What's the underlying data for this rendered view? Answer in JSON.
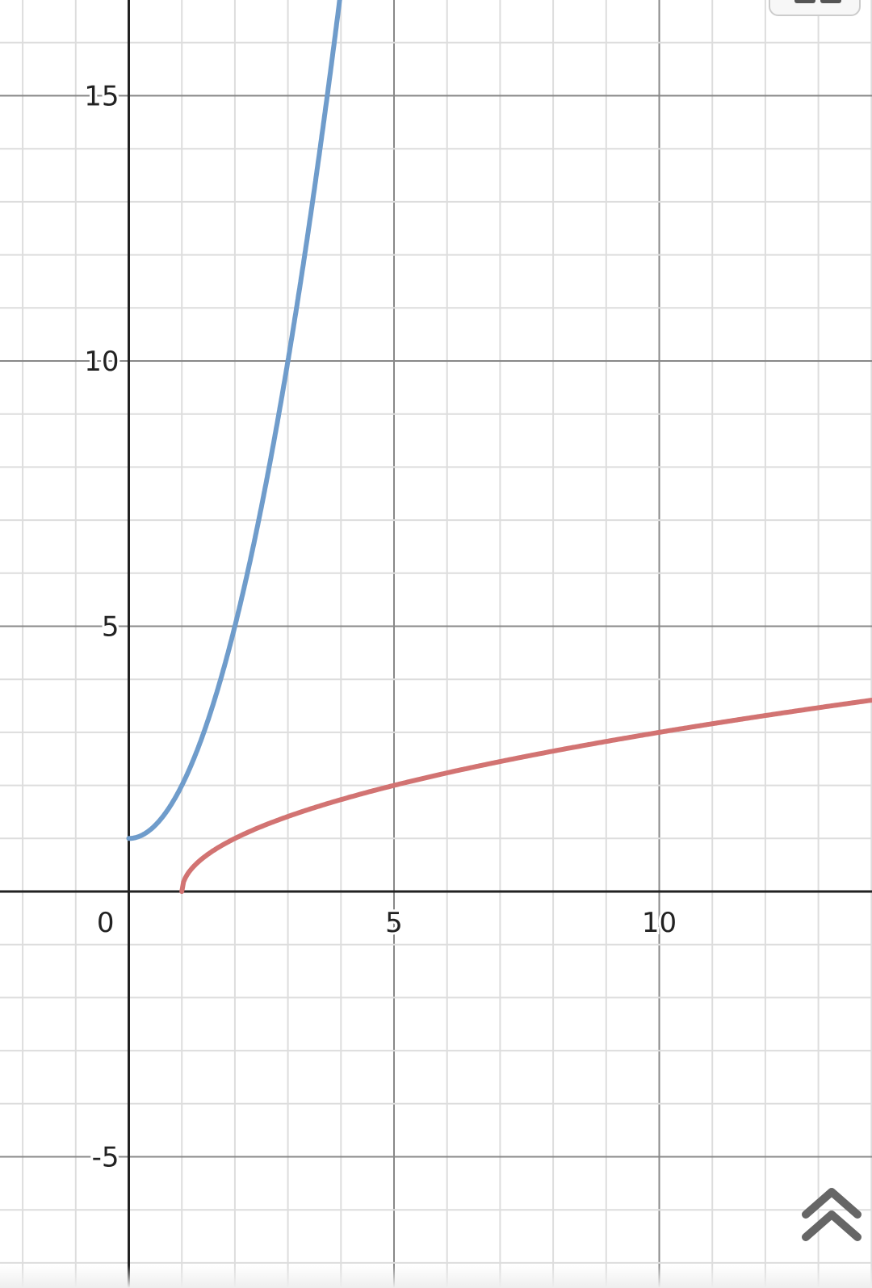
{
  "chart_data": {
    "type": "line",
    "title": "",
    "xlabel": "",
    "ylabel": "",
    "xlim": [
      -2.43,
      14.0
    ],
    "ylim": [
      -7.4,
      16.8
    ],
    "grid": true,
    "major_step": 5,
    "minor_step": 1,
    "x_ticks": [
      "0",
      "5",
      "10"
    ],
    "y_ticks": [
      "-5",
      "5",
      "10",
      "15"
    ],
    "series": [
      {
        "expression": "y = x^2 + 1 (x ≥ 0)",
        "color": "#6f9ccb",
        "domain": [
          0,
          4.0
        ],
        "points": [
          [
            0,
            1
          ],
          [
            1,
            2
          ],
          [
            2,
            5
          ],
          [
            3,
            10
          ],
          [
            3.87,
            16
          ]
        ]
      },
      {
        "expression": "y = sqrt(x - 1)",
        "color": "#d27372",
        "domain": [
          1,
          14
        ],
        "points": [
          [
            1,
            0
          ],
          [
            2,
            1
          ],
          [
            5,
            2
          ],
          [
            10,
            3
          ],
          [
            14,
            3.61
          ]
        ]
      }
    ]
  },
  "controls": {
    "collapse_icon": "double-chevron-up-icon",
    "top_button_icon": "keyboard-icon"
  }
}
